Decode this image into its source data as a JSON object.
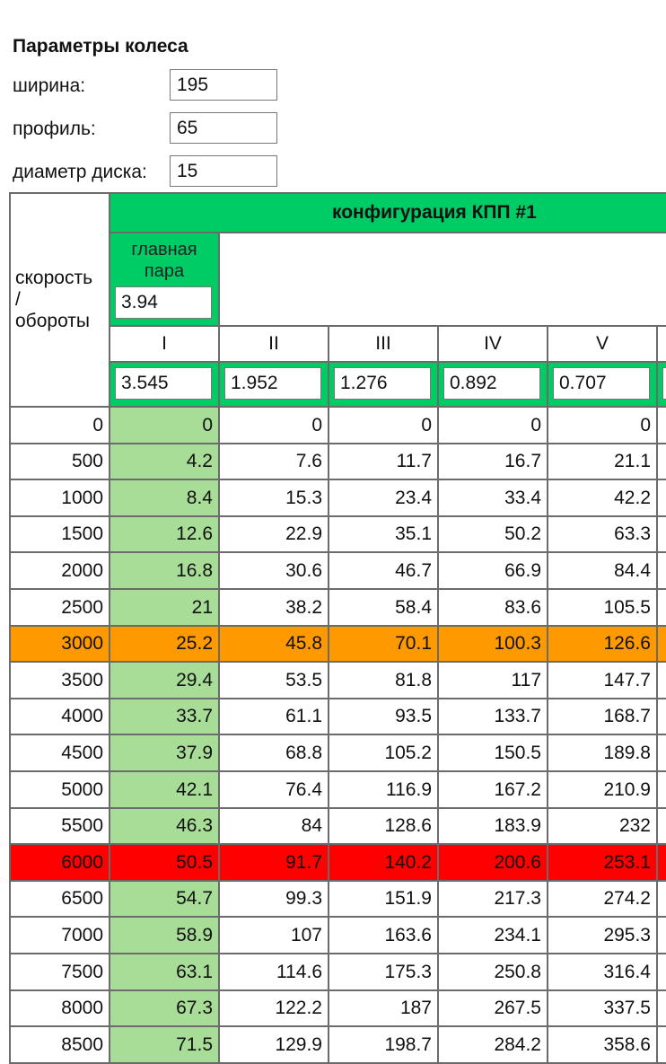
{
  "params": {
    "title": "Параметры колеса",
    "width_label": "ширина:",
    "width_value": "195",
    "profile_label": "профиль:",
    "profile_value": "65",
    "diameter_label": "диаметр диска:",
    "diameter_value": "15"
  },
  "table": {
    "header_config": "конфигурация КПП #1",
    "speed_rpm_label": "скорость\n/\nобороты",
    "main_pair_label": "главная пара",
    "main_pair_value": "3.94",
    "gears": [
      "I",
      "II",
      "III",
      "IV",
      "V"
    ],
    "gear_ratios": [
      "3.545",
      "1.952",
      "1.276",
      "0.892",
      "0.707"
    ],
    "rows": [
      {
        "rpm": "0",
        "v": [
          "0",
          "0",
          "0",
          "0",
          "0"
        ],
        "hl": ""
      },
      {
        "rpm": "500",
        "v": [
          "4.2",
          "7.6",
          "11.7",
          "16.7",
          "21.1"
        ],
        "hl": ""
      },
      {
        "rpm": "1000",
        "v": [
          "8.4",
          "15.3",
          "23.4",
          "33.4",
          "42.2"
        ],
        "hl": ""
      },
      {
        "rpm": "1500",
        "v": [
          "12.6",
          "22.9",
          "35.1",
          "50.2",
          "63.3"
        ],
        "hl": ""
      },
      {
        "rpm": "2000",
        "v": [
          "16.8",
          "30.6",
          "46.7",
          "66.9",
          "84.4"
        ],
        "hl": ""
      },
      {
        "rpm": "2500",
        "v": [
          "21",
          "38.2",
          "58.4",
          "83.6",
          "105.5"
        ],
        "hl": ""
      },
      {
        "rpm": "3000",
        "v": [
          "25.2",
          "45.8",
          "70.1",
          "100.3",
          "126.6"
        ],
        "hl": "orange"
      },
      {
        "rpm": "3500",
        "v": [
          "29.4",
          "53.5",
          "81.8",
          "117",
          "147.7"
        ],
        "hl": ""
      },
      {
        "rpm": "4000",
        "v": [
          "33.7",
          "61.1",
          "93.5",
          "133.7",
          "168.7"
        ],
        "hl": ""
      },
      {
        "rpm": "4500",
        "v": [
          "37.9",
          "68.8",
          "105.2",
          "150.5",
          "189.8"
        ],
        "hl": ""
      },
      {
        "rpm": "5000",
        "v": [
          "42.1",
          "76.4",
          "116.9",
          "167.2",
          "210.9"
        ],
        "hl": ""
      },
      {
        "rpm": "5500",
        "v": [
          "46.3",
          "84",
          "128.6",
          "183.9",
          "232"
        ],
        "hl": ""
      },
      {
        "rpm": "6000",
        "v": [
          "50.5",
          "91.7",
          "140.2",
          "200.6",
          "253.1"
        ],
        "hl": "red"
      },
      {
        "rpm": "6500",
        "v": [
          "54.7",
          "99.3",
          "151.9",
          "217.3",
          "274.2"
        ],
        "hl": ""
      },
      {
        "rpm": "7000",
        "v": [
          "58.9",
          "107",
          "163.6",
          "234.1",
          "295.3"
        ],
        "hl": ""
      },
      {
        "rpm": "7500",
        "v": [
          "63.1",
          "114.6",
          "175.3",
          "250.8",
          "316.4"
        ],
        "hl": ""
      },
      {
        "rpm": "8000",
        "v": [
          "67.3",
          "122.2",
          "187",
          "267.5",
          "337.5"
        ],
        "hl": ""
      },
      {
        "rpm": "8500",
        "v": [
          "71.5",
          "129.9",
          "198.7",
          "284.2",
          "358.6"
        ],
        "hl": ""
      }
    ]
  },
  "colors": {
    "header_green": "#00cc66",
    "first_gear_green": "#a8dd98",
    "highlight_orange": "#ff9900",
    "highlight_red": "#ff0000"
  }
}
